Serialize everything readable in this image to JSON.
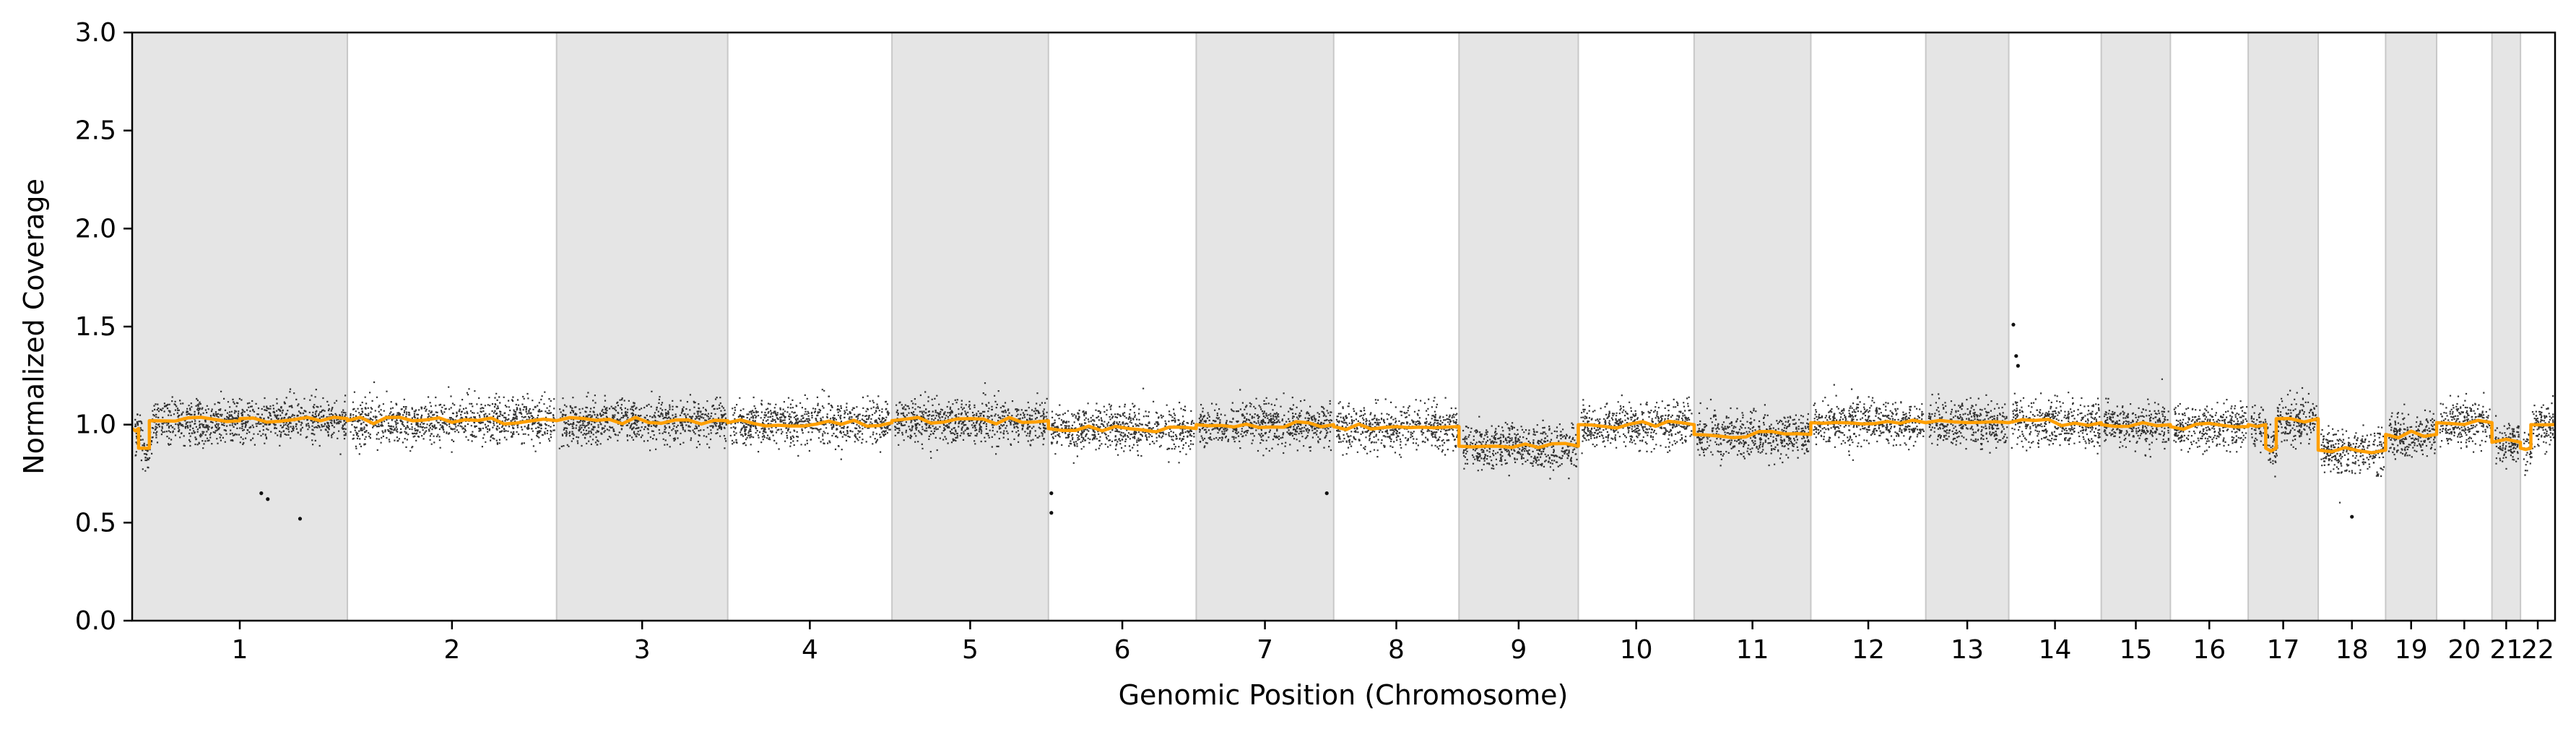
{
  "chart_data": {
    "type": "scatter",
    "xlabel": "Genomic Position (Chromosome)",
    "ylabel": "Normalized Coverage",
    "ylim": [
      0,
      3.0
    ],
    "yticks": [
      "0.0",
      "0.5",
      "1.0",
      "1.5",
      "2.0",
      "2.5",
      "3.0"
    ],
    "grid": false,
    "alternating_chromosome_shading": true,
    "shade_color": "#e5e5e5",
    "point_color": "#111111",
    "line_color": "#ff9f00",
    "chromosomes": [
      {
        "label": "1",
        "size": 249,
        "shaded": true,
        "median": 1.03,
        "segments": [
          [
            0,
            0.03,
            0.98
          ],
          [
            0.03,
            0.08,
            0.88
          ],
          [
            0.08,
            0.5,
            1.02
          ],
          [
            0.5,
            1,
            1.03
          ]
        ]
      },
      {
        "label": "2",
        "size": 242,
        "shaded": false,
        "median": 1.02,
        "segments": [
          [
            0,
            1,
            1.02
          ]
        ]
      },
      {
        "label": "3",
        "size": 198,
        "shaded": true,
        "median": 1.02,
        "segments": [
          [
            0,
            1,
            1.02
          ]
        ]
      },
      {
        "label": "4",
        "size": 190,
        "shaded": false,
        "median": 1.01,
        "segments": [
          [
            0,
            1,
            1.01
          ]
        ]
      },
      {
        "label": "5",
        "size": 181,
        "shaded": true,
        "median": 1.02,
        "segments": [
          [
            0,
            1,
            1.02
          ]
        ]
      },
      {
        "label": "6",
        "size": 171,
        "shaded": false,
        "median": 0.98,
        "segments": [
          [
            0,
            1,
            0.98
          ]
        ]
      },
      {
        "label": "7",
        "size": 159,
        "shaded": true,
        "median": 1.0,
        "segments": [
          [
            0,
            1,
            1.0
          ]
        ]
      },
      {
        "label": "8",
        "size": 145,
        "shaded": false,
        "median": 0.99,
        "segments": [
          [
            0,
            1,
            0.99
          ]
        ]
      },
      {
        "label": "9",
        "size": 138,
        "shaded": true,
        "median": 0.89,
        "segments": [
          [
            0,
            1,
            0.89
          ]
        ]
      },
      {
        "label": "10",
        "size": 134,
        "shaded": false,
        "median": 1.0,
        "segments": [
          [
            0,
            1,
            1.0
          ]
        ]
      },
      {
        "label": "11",
        "size": 135,
        "shaded": true,
        "median": 0.95,
        "segments": [
          [
            0,
            1,
            0.95
          ]
        ]
      },
      {
        "label": "12",
        "size": 133,
        "shaded": false,
        "median": 1.01,
        "segments": [
          [
            0,
            1,
            1.01
          ]
        ]
      },
      {
        "label": "13",
        "size": 96,
        "shaded": true,
        "median": 1.01,
        "segments": [
          [
            0,
            1,
            1.01
          ]
        ]
      },
      {
        "label": "14",
        "size": 107,
        "shaded": false,
        "median": 1.01,
        "segments": [
          [
            0,
            1,
            1.01
          ]
        ]
      },
      {
        "label": "15",
        "size": 80,
        "shaded": true,
        "median": 1.0,
        "segments": [
          [
            0,
            1,
            1.0
          ]
        ]
      },
      {
        "label": "16",
        "size": 90,
        "shaded": false,
        "median": 0.99,
        "segments": [
          [
            0,
            1,
            0.99
          ]
        ]
      },
      {
        "label": "17",
        "size": 81,
        "shaded": true,
        "median": 1.02,
        "segments": [
          [
            0,
            0.25,
            1.0
          ],
          [
            0.25,
            0.4,
            0.88
          ],
          [
            0.4,
            1,
            1.03
          ]
        ]
      },
      {
        "label": "18",
        "size": 78,
        "shaded": false,
        "median": 0.87,
        "segments": [
          [
            0,
            1,
            0.87
          ]
        ]
      },
      {
        "label": "19",
        "size": 59,
        "shaded": true,
        "median": 0.95,
        "segments": [
          [
            0,
            1,
            0.95
          ]
        ]
      },
      {
        "label": "20",
        "size": 64,
        "shaded": false,
        "median": 1.01,
        "segments": [
          [
            0,
            1,
            1.01
          ]
        ]
      },
      {
        "label": "21",
        "size": 33,
        "shaded": true,
        "median": 0.91,
        "segments": [
          [
            0,
            1,
            0.91
          ]
        ]
      },
      {
        "label": "22",
        "size": 40,
        "shaded": false,
        "median": 0.99,
        "segments": [
          [
            0,
            0.3,
            0.88
          ],
          [
            0.3,
            1,
            1.0
          ]
        ]
      }
    ],
    "outliers": [
      {
        "chrom": "1",
        "pos": 0.6,
        "value": 0.65
      },
      {
        "chrom": "1",
        "pos": 0.63,
        "value": 0.62
      },
      {
        "chrom": "1",
        "pos": 0.78,
        "value": 0.52
      },
      {
        "chrom": "6",
        "pos": 0.02,
        "value": 0.65
      },
      {
        "chrom": "6",
        "pos": 0.02,
        "value": 0.55
      },
      {
        "chrom": "7",
        "pos": 0.95,
        "value": 0.65
      },
      {
        "chrom": "14",
        "pos": 0.05,
        "value": 1.51
      },
      {
        "chrom": "14",
        "pos": 0.08,
        "value": 1.35
      },
      {
        "chrom": "14",
        "pos": 0.1,
        "value": 1.3
      },
      {
        "chrom": "18",
        "pos": 0.5,
        "value": 0.53
      }
    ]
  }
}
